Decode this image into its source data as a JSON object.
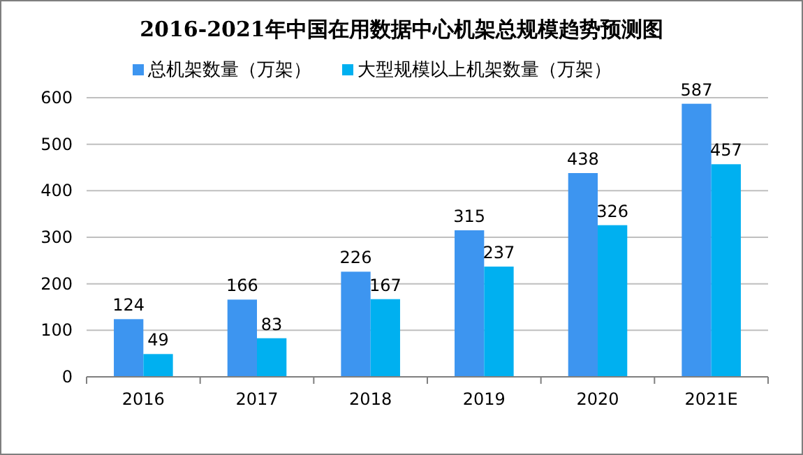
{
  "chart_data": {
    "type": "bar",
    "title": "2016-2021年中国在用数据中心机架总规模趋势预测图",
    "categories": [
      "2016",
      "2017",
      "2018",
      "2019",
      "2020",
      "2021E"
    ],
    "series": [
      {
        "name": "总机架数量（万架）",
        "color": "#3d95f0",
        "values": [
          124,
          166,
          226,
          315,
          438,
          587
        ]
      },
      {
        "name": "大型规模以上机架数量（万架）",
        "color": "#00b0f0",
        "values": [
          49,
          83,
          167,
          237,
          326,
          457
        ]
      }
    ],
    "ylim": [
      0,
      600
    ],
    "yticks": [
      0,
      100,
      200,
      300,
      400,
      500,
      600
    ],
    "grid": "y",
    "legend": "top left",
    "data_labels": true
  }
}
